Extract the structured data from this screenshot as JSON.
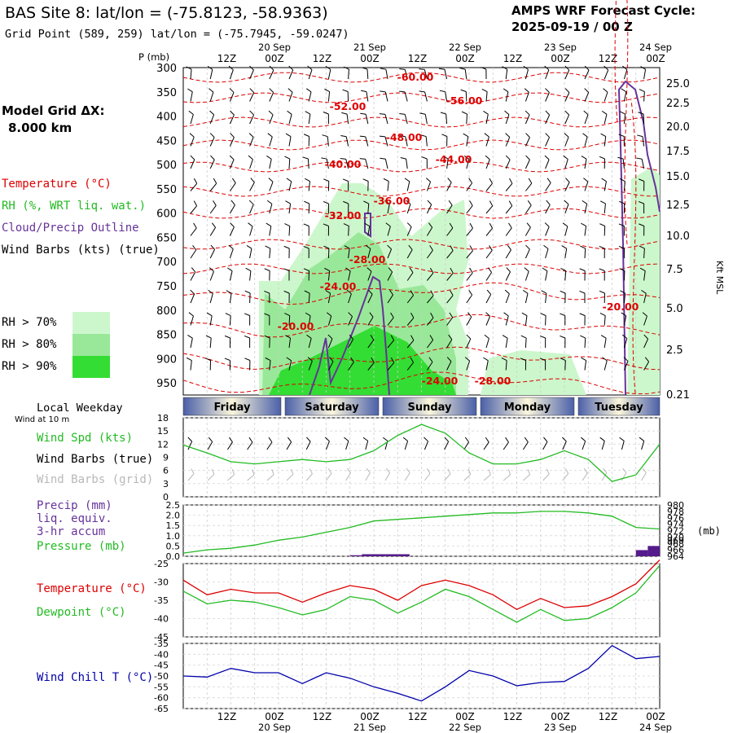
{
  "header": {
    "site_title": "BAS Site 8:  lat/lon = (-75.8123, -58.9363)",
    "grid_point": "Grid Point (589, 259) lat/lon = (-75.7945, -59.0247)",
    "cycle_title": "AMPS WRF Forecast Cycle:",
    "cycle_date": "2025-09-19 / 00  Z"
  },
  "left_legend": {
    "model_grid": "Model Grid ΔX:",
    "grid_km": "8.000 km",
    "temperature": "Temperature (°C)",
    "rh": "RH (%, WRT liq. wat.)",
    "cloud": "Cloud/Precip Outline",
    "wind_barbs": "Wind Barbs (kts) (true)",
    "rh70": "RH > 70%",
    "rh80": "RH > 80%",
    "rh90": "RH > 90%",
    "local_weekday": "Local Weekday",
    "wind_at_10m": "Wind at 10 m"
  },
  "colors": {
    "temperature": "#dd0000",
    "rh_text": "#22bb22",
    "cloud": "#663399",
    "rh70": "#ccf7cc",
    "rh80": "#99e899",
    "rh90": "#33dd33",
    "dewpoint": "#22bb22",
    "windchill": "#0000aa",
    "precip": "#551a8b",
    "gray_barbs": "#b8b8b8"
  },
  "time_axis": {
    "top_labels": [
      "12Z",
      "00Z",
      "12Z",
      "00Z",
      "12Z",
      "00Z",
      "12Z",
      "00Z",
      "12Z",
      "00Z"
    ],
    "date_labels": [
      "20 Sep",
      "21 Sep",
      "22 Sep",
      "23 Sep",
      "24 Sep"
    ],
    "weekdays": [
      "Friday",
      "Saturday",
      "Sunday",
      "Monday",
      "Tuesday"
    ]
  },
  "pressure_axis": {
    "label": "P (mb)",
    "ticks": [
      "300",
      "350",
      "400",
      "450",
      "500",
      "550",
      "600",
      "650",
      "700",
      "750",
      "800",
      "850",
      "900",
      "950"
    ]
  },
  "height_axis": {
    "label": "Kft MSL",
    "ticks": [
      "25.0",
      "22.5",
      "20.0",
      "17.5",
      "15.0",
      "12.5",
      "10.0",
      "7.5",
      "5.0",
      "2.5",
      "0.21"
    ]
  },
  "temp_contour_labels": [
    "-60.00",
    "-56.00",
    "-52.00",
    "-48.00",
    "-44.00",
    "-40.00",
    "-36.00",
    "-32.00",
    "-28.00",
    "-24.00",
    "-20.00",
    "-20.00",
    "-24.00",
    "-28.00"
  ],
  "panels": {
    "wind": {
      "label_spd": "Wind Spd (kts)",
      "label_barbs": "Wind Barbs (true)",
      "label_grid": "Wind Barbs (grid)",
      "y_ticks": [
        "18",
        "15",
        "12",
        "9",
        "6",
        "3",
        "0"
      ]
    },
    "precip": {
      "label_precip": "Precip (mm)",
      "label_liq": "liq. equiv.",
      "label_accum": "3-hr accum",
      "label_pressure": "Pressure (mb)",
      "left_ticks": [
        "2.5",
        "2.0",
        "1.5",
        "1.0",
        "0.5",
        "0.0"
      ],
      "right_ticks": [
        "980",
        "978",
        "976",
        "974",
        "972",
        "970",
        "969",
        "968",
        "966",
        "964"
      ],
      "unit": "(mb)"
    },
    "temp": {
      "label_temp": "Temperature (°C)",
      "label_dew": "Dewpoint (°C)",
      "y_ticks": [
        "-25",
        "-30",
        "-35",
        "-40",
        "-45"
      ]
    },
    "chill": {
      "label": "Wind Chill T (°C)",
      "y_ticks": [
        "-35",
        "-40",
        "-45",
        "-50",
        "-55",
        "-60",
        "-65"
      ]
    }
  },
  "chart_data": [
    {
      "type": "line",
      "title": "Wind Spd (kts)",
      "x": [
        "09-19 00Z",
        "09-19 06Z",
        "09-19 12Z",
        "09-19 18Z",
        "09-20 00Z",
        "09-20 06Z",
        "09-20 12Z",
        "09-20 18Z",
        "09-21 00Z",
        "09-21 06Z",
        "09-21 12Z",
        "09-21 18Z",
        "09-22 00Z",
        "09-22 06Z",
        "09-22 12Z",
        "09-22 18Z",
        "09-23 00Z",
        "09-23 06Z",
        "09-23 12Z",
        "09-23 18Z",
        "09-24 00Z"
      ],
      "series": [
        {
          "name": "Wind Spd (kts)",
          "values": [
            11.8,
            10.0,
            8.0,
            7.5,
            8.0,
            8.5,
            8.0,
            8.5,
            10.5,
            14.0,
            16.5,
            14.5,
            10.0,
            7.5,
            7.5,
            8.5,
            10.5,
            8.5,
            3.5,
            5.0,
            12.0
          ]
        }
      ],
      "ylim": [
        0,
        18
      ]
    },
    {
      "type": "line",
      "title": "Pressure (mb)",
      "x": [
        "09-19 00Z",
        "09-19 06Z",
        "09-19 12Z",
        "09-19 18Z",
        "09-20 00Z",
        "09-20 06Z",
        "09-20 12Z",
        "09-20 18Z",
        "09-21 00Z",
        "09-21 06Z",
        "09-21 12Z",
        "09-21 18Z",
        "09-22 00Z",
        "09-22 06Z",
        "09-22 12Z",
        "09-22 18Z",
        "09-23 00Z",
        "09-23 06Z",
        "09-23 12Z",
        "09-23 18Z",
        "09-24 00Z"
      ],
      "series": [
        {
          "name": "Pressure (mb)",
          "values": [
            965.0,
            966.0,
            966.5,
            967.5,
            969.0,
            970.0,
            971.5,
            973.0,
            975.0,
            975.5,
            976.0,
            976.5,
            977.0,
            977.5,
            977.5,
            978.0,
            978.0,
            977.5,
            976.5,
            973.0,
            972.5
          ]
        }
      ],
      "ylim": [
        964,
        980
      ]
    },
    {
      "type": "bar",
      "title": "Precip (mm)",
      "x": [
        "09-20 15Z",
        "09-20 18Z",
        "09-20 21Z",
        "09-21 00Z",
        "09-21 03Z",
        "09-23 21Z",
        "09-24 00Z"
      ],
      "series": [
        {
          "name": "Precip (mm)",
          "values": [
            0.05,
            0.1,
            0.1,
            0.1,
            0.1,
            0.3,
            0.5
          ]
        }
      ],
      "ylim": [
        0,
        2.5
      ]
    },
    {
      "type": "line",
      "title": "Temperature / Dewpoint (°C)",
      "x": [
        "09-19 00Z",
        "09-19 06Z",
        "09-19 12Z",
        "09-19 18Z",
        "09-20 00Z",
        "09-20 06Z",
        "09-20 12Z",
        "09-20 18Z",
        "09-21 00Z",
        "09-21 06Z",
        "09-21 12Z",
        "09-21 18Z",
        "09-22 00Z",
        "09-22 06Z",
        "09-22 12Z",
        "09-22 18Z",
        "09-23 00Z",
        "09-23 06Z",
        "09-23 12Z",
        "09-23 18Z",
        "09-24 00Z"
      ],
      "series": [
        {
          "name": "Temperature (°C)",
          "values": [
            -29.5,
            -33.5,
            -32.0,
            -33.0,
            -33.0,
            -35.5,
            -33.0,
            -31.0,
            -32.0,
            -35.0,
            -31.0,
            -29.5,
            -31.0,
            -33.5,
            -37.5,
            -34.5,
            -37.0,
            -36.5,
            -34.0,
            -30.5,
            -24.0
          ]
        },
        {
          "name": "Dewpoint (°C)",
          "values": [
            -32.5,
            -36.0,
            -35.0,
            -35.5,
            -37.0,
            -39.0,
            -37.5,
            -34.0,
            -35.0,
            -38.5,
            -35.5,
            -32.0,
            -34.0,
            -37.5,
            -41.0,
            -37.5,
            -40.5,
            -40.0,
            -37.0,
            -33.0,
            -25.5
          ]
        }
      ],
      "ylim": [
        -45,
        -25
      ]
    },
    {
      "type": "line",
      "title": "Wind Chill T (°C)",
      "x": [
        "09-19 00Z",
        "09-19 06Z",
        "09-19 12Z",
        "09-19 18Z",
        "09-20 00Z",
        "09-20 06Z",
        "09-20 12Z",
        "09-20 18Z",
        "09-21 00Z",
        "09-21 06Z",
        "09-21 12Z",
        "09-21 18Z",
        "09-22 00Z",
        "09-22 06Z",
        "09-22 12Z",
        "09-22 18Z",
        "09-23 00Z",
        "09-23 06Z",
        "09-23 12Z",
        "09-23 18Z",
        "09-24 00Z"
      ],
      "series": [
        {
          "name": "Wind Chill T (°C)",
          "values": [
            -50.0,
            -50.5,
            -46.5,
            -48.5,
            -48.5,
            -53.5,
            -48.5,
            -51.0,
            -55.0,
            -58.0,
            -61.5,
            -55.0,
            -47.5,
            -50.0,
            -54.5,
            -53.0,
            -52.5,
            -46.5,
            -36.0,
            -42.0,
            -41.0
          ]
        }
      ],
      "ylim": [
        -65,
        -35
      ]
    }
  ]
}
